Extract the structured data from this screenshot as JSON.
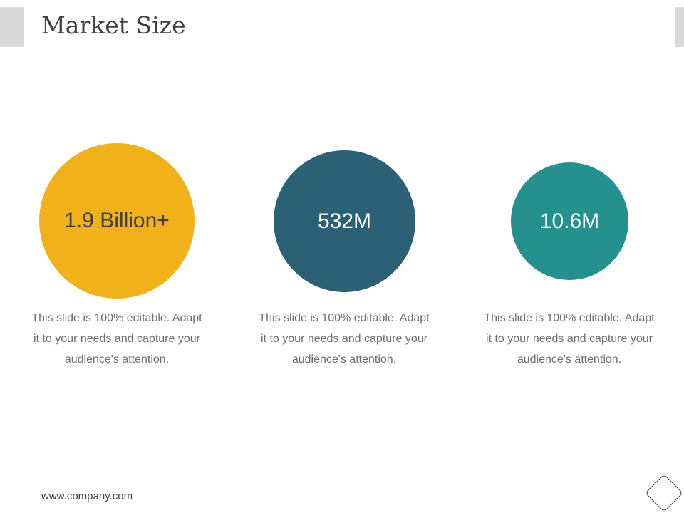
{
  "slide": {
    "title": "Market Size",
    "footer": "www.company.com"
  },
  "metrics": [
    {
      "value": "1.9 Billion+",
      "description": "This slide is 100% editable. Adapt it to your needs and capture your audience's attention.",
      "color": "#F0B11B",
      "text_color": "#404040"
    },
    {
      "value": "532M",
      "description": "This slide is 100% editable. Adapt it to your needs and capture your audience's attention.",
      "color": "#2C6175",
      "text_color": "#FFFFFF"
    },
    {
      "value": "10.6M",
      "description": "This slide is 100% editable. Adapt it to your needs and capture your audience's attention.",
      "color": "#24918E",
      "text_color": "#FFFFFF"
    }
  ],
  "icons": {
    "corner_icon": "diamond-outline-icon"
  }
}
